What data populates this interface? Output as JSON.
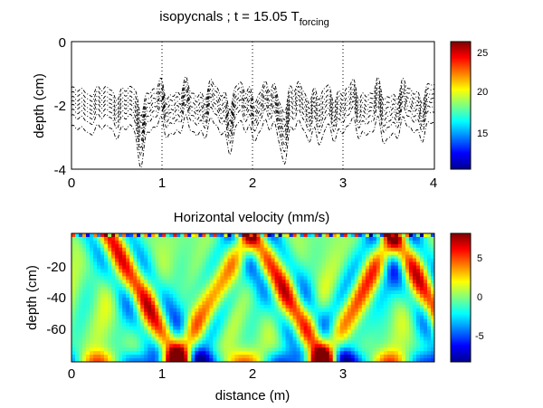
{
  "figure": {
    "top_title_main": "isopycnals ; t = 15.05 T",
    "top_title_sub": "forcing",
    "bottom_title": "Horizontal velocity (mm/s)",
    "ylabel_top": "depth (cm)",
    "ylabel_bottom": "depth (cm)",
    "xlabel_bottom": "distance (m)"
  },
  "colors": {
    "jet": [
      "#00008f",
      "#0000ff",
      "#007fff",
      "#00ffff",
      "#7fff7f",
      "#ffff00",
      "#ff7f00",
      "#ff0000",
      "#7f0000"
    ],
    "line": "#000000",
    "axis": "#000000"
  },
  "chart_data": [
    {
      "type": "line",
      "title": "isopycnals ; t = 15.05 Tforcing",
      "xlabel": "",
      "ylabel": "depth (cm)",
      "xlim": [
        0,
        4
      ],
      "ylim": [
        -4,
        0
      ],
      "xticks": [
        "0",
        "1",
        "2",
        "3",
        "4"
      ],
      "yticks": [
        "0",
        "-2",
        "-4"
      ],
      "vertical_dotted_lines_at": [
        1,
        2,
        3
      ],
      "colorbar": {
        "ticks": [
          "15",
          "20",
          "25"
        ],
        "range": [
          10,
          26.5
        ]
      },
      "series_count": 8,
      "series_base_depths": [
        -1.55,
        -1.7,
        -1.85,
        -1.98,
        -2.1,
        -2.25,
        -2.42,
        -2.75
      ],
      "line_style": "dash-dot"
    },
    {
      "type": "heatmap",
      "title": "Horizontal velocity (mm/s)",
      "xlabel": "distance (m)",
      "ylabel": "depth (cm)",
      "xlim": [
        0,
        4
      ],
      "ylim": [
        -80,
        0
      ],
      "xticks": [
        "0",
        "1",
        "2",
        "3"
      ],
      "yticks": [
        "-20",
        "-40",
        "-60"
      ],
      "colorbar": {
        "ticks": [
          "5",
          "0",
          "-5"
        ],
        "range": [
          -8.5,
          8.5
        ]
      },
      "pattern": "internal wave beams reflecting between surface and bottom"
    }
  ]
}
